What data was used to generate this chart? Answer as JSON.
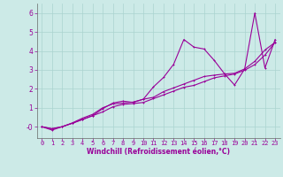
{
  "xlabel": "Windchill (Refroidissement éolien,°C)",
  "background_color": "#cceae7",
  "grid_color": "#aad4d0",
  "line_color": "#990099",
  "x_ticks": [
    0,
    1,
    2,
    3,
    4,
    5,
    6,
    7,
    8,
    9,
    10,
    11,
    12,
    13,
    14,
    15,
    16,
    17,
    18,
    19,
    20,
    21,
    22,
    23
  ],
  "y_ticks": [
    0,
    1,
    2,
    3,
    4,
    5,
    6
  ],
  "y_tick_labels": [
    "-0",
    "1",
    "2",
    "3",
    "4",
    "5",
    "6"
  ],
  "ylim": [
    -0.6,
    6.5
  ],
  "xlim": [
    -0.5,
    23.5
  ],
  "series": [
    [
      0.0,
      -0.12,
      0.0,
      0.2,
      0.45,
      0.65,
      1.0,
      1.2,
      1.25,
      1.3,
      1.45,
      2.1,
      2.6,
      3.3,
      4.6,
      4.2,
      4.1,
      3.5,
      2.8,
      2.2,
      3.05,
      6.0,
      3.1,
      4.6
    ],
    [
      0.0,
      -0.18,
      0.0,
      0.18,
      0.38,
      0.58,
      0.95,
      1.25,
      1.35,
      1.28,
      1.45,
      1.55,
      1.85,
      2.05,
      2.25,
      2.45,
      2.65,
      2.72,
      2.78,
      2.82,
      3.05,
      3.45,
      4.05,
      4.45
    ],
    [
      0.0,
      -0.1,
      0.0,
      0.18,
      0.38,
      0.58,
      0.78,
      1.05,
      1.18,
      1.22,
      1.28,
      1.48,
      1.68,
      1.88,
      2.08,
      2.18,
      2.38,
      2.58,
      2.68,
      2.78,
      2.98,
      3.28,
      3.78,
      4.45
    ]
  ],
  "tick_fontsize": 5.0,
  "xlabel_fontsize": 5.5,
  "linewidth": 0.8,
  "markersize": 2.0
}
